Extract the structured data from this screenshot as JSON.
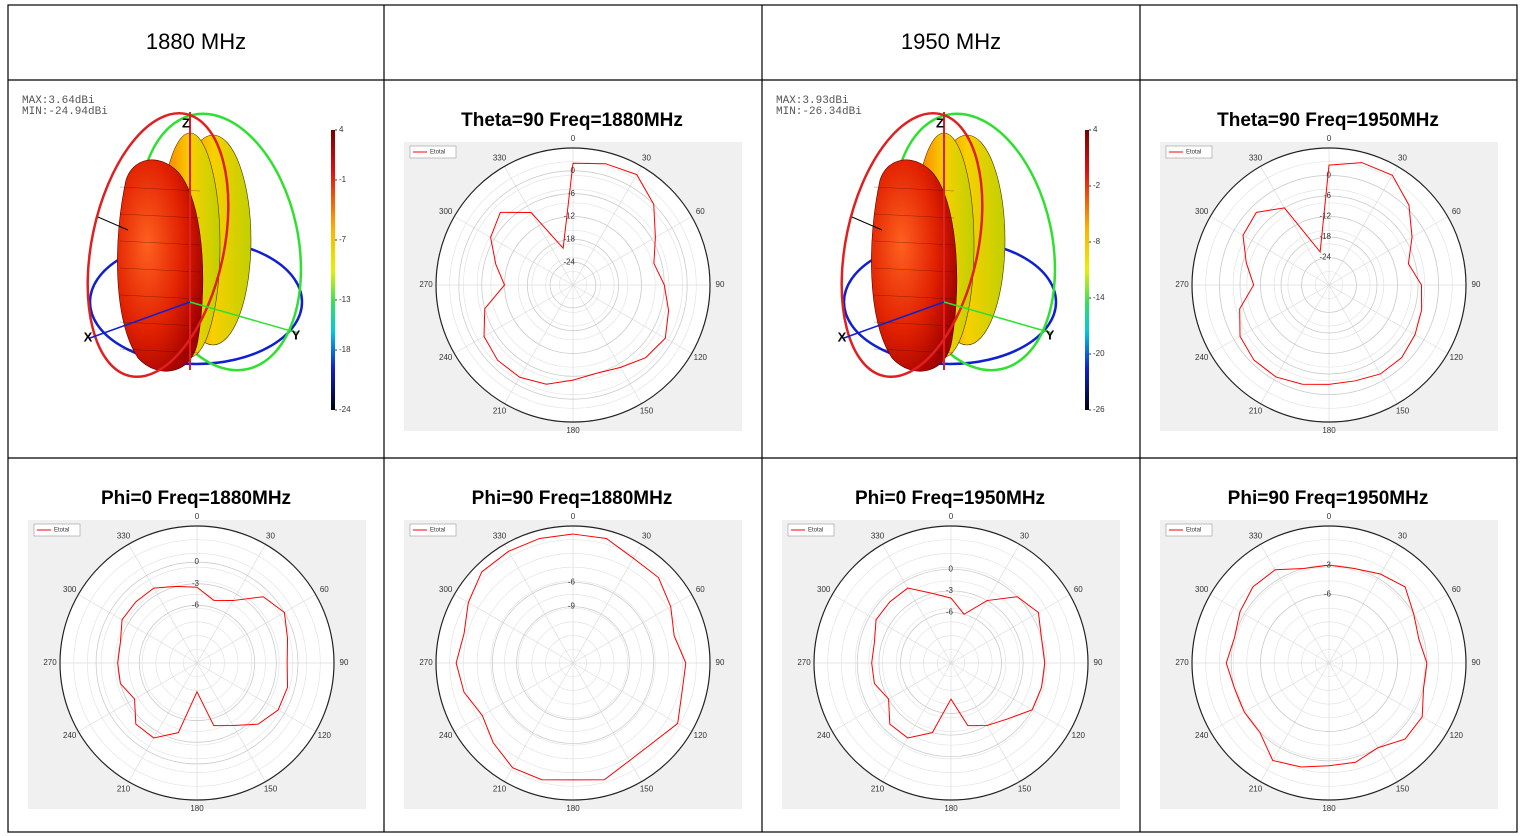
{
  "table": {
    "header": [
      "1880 MHz",
      "1950 MHz"
    ]
  },
  "chart_data": [
    {
      "type": "surface3d",
      "max_label": "MAX:3.64dBi",
      "min_label": "MIN:-24.94dBi",
      "axis_labels": [
        "Z",
        "X",
        "Y"
      ],
      "clim": [
        -24,
        4
      ],
      "cticks": [
        4,
        -1,
        -7,
        -13,
        -18,
        -24
      ]
    },
    {
      "type": "polar",
      "title": "Theta=90 Freq=1880MHz",
      "theta": [
        0,
        15,
        30,
        45,
        60,
        75,
        90,
        105,
        120,
        135,
        150,
        165,
        180,
        195,
        210,
        225,
        240,
        255,
        270,
        285,
        300,
        315,
        330,
        345
      ],
      "series": [
        {
          "name": "Etotal",
          "color": "#ff0000",
          "values": [
            2,
            3,
            3.5,
            0,
            -5,
            -8,
            -6,
            -4,
            -2,
            -3,
            -5,
            -6,
            -5,
            -3,
            -2,
            -2,
            -3,
            -6,
            -12,
            -9,
            -5,
            -3,
            -8,
            -20
          ]
        }
      ],
      "rlim": [
        -30,
        6
      ],
      "rticks": [
        0,
        -6,
        -12,
        -18,
        -24
      ],
      "thetaticks": [
        0,
        30,
        60,
        90,
        120,
        150,
        180,
        210,
        240,
        270,
        300,
        330
      ]
    },
    {
      "type": "surface3d",
      "max_label": "MAX:3.93dBi",
      "min_label": "MIN:-26.34dBi",
      "axis_labels": [
        "Z",
        "X",
        "Y"
      ],
      "clim": [
        -26,
        4
      ],
      "cticks": [
        4,
        -2,
        -8,
        -14,
        -20,
        -26
      ]
    },
    {
      "type": "polar",
      "title": "Theta=90 Freq=1950MHz",
      "theta": [
        0,
        15,
        30,
        45,
        60,
        75,
        90,
        105,
        120,
        135,
        150,
        165,
        180,
        195,
        210,
        225,
        240,
        255,
        270,
        285,
        300,
        315,
        330,
        345
      ],
      "series": [
        {
          "name": "Etotal",
          "color": "#ff0000",
          "values": [
            3,
            5,
            5,
            1,
            -4,
            -8,
            -5,
            -4,
            -3,
            -2,
            -2,
            -3,
            -3,
            -2,
            -1,
            -1,
            -2,
            -5,
            -10,
            -7,
            -3,
            -2,
            -6,
            -22
          ]
        }
      ],
      "rlim": [
        -32,
        8
      ],
      "rticks": [
        0,
        -6,
        -12,
        -18,
        -24
      ],
      "thetaticks": [
        0,
        30,
        60,
        90,
        120,
        150,
        180,
        210,
        240,
        270,
        300,
        330
      ]
    },
    {
      "type": "polar",
      "title": "Phi=0 Freq=1880MHz",
      "theta": [
        0,
        15,
        30,
        45,
        60,
        75,
        90,
        105,
        120,
        135,
        150,
        165,
        180,
        195,
        210,
        225,
        240,
        255,
        270,
        285,
        300,
        315,
        330,
        345
      ],
      "series": [
        {
          "name": "Etotal",
          "color": "#ff0000",
          "values": [
            -3.5,
            -5,
            -4,
            -1,
            0,
            -1,
            -1.5,
            -1,
            -1,
            -2,
            -4,
            -5,
            -10,
            -4,
            -2,
            -2,
            -4,
            -3,
            -3,
            -3,
            -2,
            -2,
            -2,
            -3
          ]
        }
      ],
      "rlim": [
        -14,
        5
      ],
      "rticks": [
        0,
        -3,
        -6
      ],
      "thetaticks": [
        0,
        30,
        60,
        90,
        120,
        150,
        180,
        210,
        240,
        270,
        300,
        330
      ]
    },
    {
      "type": "polar",
      "title": "Phi=90 Freq=1880MHz",
      "theta": [
        0,
        15,
        30,
        45,
        60,
        75,
        90,
        105,
        120,
        135,
        150,
        165,
        180,
        195,
        210,
        225,
        240,
        255,
        270,
        285,
        300,
        315,
        330,
        345
      ],
      "series": [
        {
          "name": "Etotal",
          "color": "#ff0000",
          "values": [
            0,
            0,
            -1,
            -1,
            -2,
            -3,
            -2,
            -2,
            -1,
            -2,
            -2,
            -1,
            -1.5,
            -1,
            -1,
            -2,
            -3,
            -2,
            -1.5,
            -2,
            -1,
            0,
            0,
            0
          ]
        }
      ],
      "rlim": [
        -16,
        1
      ],
      "rticks": [
        -6,
        -9
      ],
      "thetaticks": [
        0,
        30,
        60,
        90,
        120,
        150,
        180,
        210,
        240,
        270,
        300,
        330
      ]
    },
    {
      "type": "polar",
      "title": "Phi=0 Freq=1950MHz",
      "theta": [
        0,
        15,
        30,
        45,
        60,
        75,
        90,
        105,
        120,
        135,
        150,
        165,
        180,
        195,
        210,
        225,
        240,
        255,
        270,
        285,
        300,
        315,
        330,
        345
      ],
      "series": [
        {
          "name": "Etotal",
          "color": "#ff0000",
          "values": [
            -4,
            -6,
            -3,
            0,
            1,
            0,
            0,
            0,
            0,
            -2,
            -3,
            -4,
            -8,
            -3,
            -1,
            -1,
            -3,
            -2,
            -2,
            -2,
            -1,
            -1,
            -1,
            -3
          ]
        }
      ],
      "rlim": [
        -13,
        6
      ],
      "rticks": [
        0,
        -3,
        -6
      ],
      "thetaticks": [
        0,
        30,
        60,
        90,
        120,
        150,
        180,
        210,
        240,
        270,
        300,
        330
      ]
    },
    {
      "type": "polar",
      "title": "Phi=90 Freq=1950MHz",
      "theta": [
        0,
        15,
        30,
        45,
        60,
        75,
        90,
        105,
        120,
        135,
        150,
        165,
        180,
        195,
        210,
        225,
        240,
        255,
        270,
        285,
        300,
        315,
        330,
        345
      ],
      "series": [
        {
          "name": "Etotal",
          "color": "#ff0000",
          "values": [
            -3,
            -3,
            -2.5,
            -2,
            -3,
            -3.5,
            -3,
            -3,
            -2,
            -2,
            -3,
            -2.5,
            -2.5,
            -2,
            -1.5,
            -3,
            -3,
            -3,
            -2.5,
            -3,
            -2.5,
            -2,
            -2,
            -3
          ]
        }
      ],
      "rlim": [
        -13,
        1
      ],
      "rticks": [
        -3,
        -6
      ],
      "thetaticks": [
        0,
        30,
        60,
        90,
        120,
        150,
        180,
        210,
        240,
        270,
        300,
        330
      ]
    }
  ]
}
